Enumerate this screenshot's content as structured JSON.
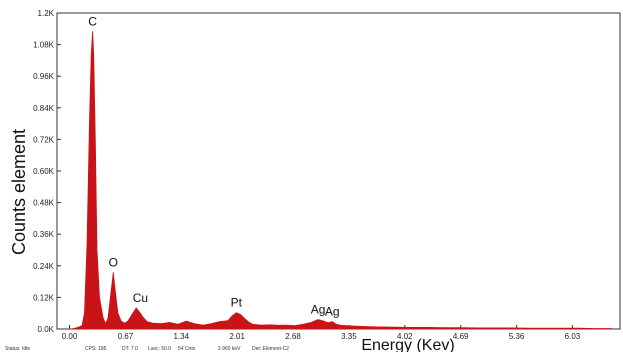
{
  "chart_data": {
    "type": "area",
    "title": "",
    "xlabel": "Energy (Kev)",
    "ylabel": "Counts element",
    "x_ticks": [
      "0.00",
      "0.67",
      "1.34",
      "2.01",
      "2.68",
      "3.35",
      "4.02",
      "4.69",
      "5.36",
      "6.03"
    ],
    "y_ticks": [
      "0.0K",
      "0.12K",
      "0.24K",
      "0.36K",
      "0.48K",
      "0.60K",
      "0.72K",
      "0.84K",
      "0.96K",
      "1.08K",
      "1.2K"
    ],
    "xlim": [
      -0.15,
      6.6
    ],
    "ylim": [
      0,
      1200
    ],
    "grid": false,
    "series": [
      {
        "color": "#c81418",
        "x": [
          0.0,
          0.05,
          0.1,
          0.15,
          0.18,
          0.21,
          0.24,
          0.26,
          0.277,
          0.29,
          0.31,
          0.33,
          0.36,
          0.4,
          0.43,
          0.46,
          0.49,
          0.525,
          0.55,
          0.58,
          0.62,
          0.66,
          0.7,
          0.75,
          0.8,
          0.85,
          0.88,
          0.93,
          1.0,
          1.1,
          1.2,
          1.3,
          1.4,
          1.5,
          1.6,
          1.7,
          1.8,
          1.9,
          1.95,
          2.0,
          2.05,
          2.1,
          2.15,
          2.2,
          2.3,
          2.4,
          2.5,
          2.6,
          2.7,
          2.8,
          2.9,
          2.98,
          3.05,
          3.1,
          3.15,
          3.2,
          3.25,
          3.35,
          3.5,
          3.7,
          3.9,
          4.1,
          4.3,
          4.5,
          4.7,
          4.9,
          5.1,
          5.3,
          5.5,
          5.7,
          5.9,
          6.1,
          6.3,
          6.5
        ],
        "y": [
          0,
          2,
          6,
          12,
          60,
          320,
          790,
          1040,
          1130,
          1040,
          700,
          300,
          120,
          45,
          20,
          40,
          120,
          215,
          140,
          60,
          30,
          22,
          30,
          55,
          80,
          60,
          45,
          28,
          22,
          20,
          25,
          18,
          30,
          20,
          15,
          20,
          28,
          32,
          50,
          62,
          55,
          40,
          26,
          18,
          15,
          16,
          14,
          15,
          13,
          18,
          25,
          36,
          30,
          24,
          28,
          18,
          14,
          12,
          10,
          8,
          7,
          6,
          6,
          5,
          5,
          4,
          4,
          4,
          3,
          3,
          3,
          3,
          2,
          2
        ]
      }
    ],
    "annotations": [
      {
        "text": "C",
        "x": 0.277,
        "y": 1130
      },
      {
        "text": "O",
        "x": 0.525,
        "y": 215
      },
      {
        "text": "Cu",
        "x": 0.85,
        "y": 80
      },
      {
        "text": "Pt",
        "x": 2.0,
        "y": 62
      },
      {
        "text": "Ag",
        "x": 2.98,
        "y": 36
      },
      {
        "text": "Ag",
        "x": 3.15,
        "y": 28
      }
    ]
  },
  "status_bar": {
    "items": [
      "Status: Idle",
      "CPS: 185",
      "DT: 7.0",
      "Lsec: 50.0",
      "54 Cnts",
      "2.960 keV",
      "Det: Element-C2"
    ]
  }
}
